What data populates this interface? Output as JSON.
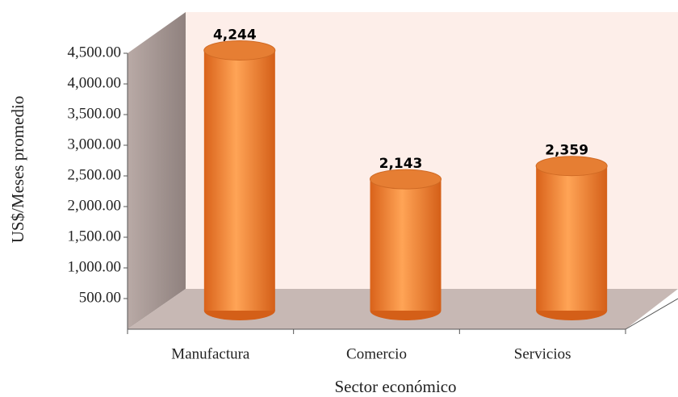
{
  "chart_data": {
    "type": "bar",
    "x_label": "Sector económico",
    "y_label": "US$/Meses promedio",
    "categories": [
      "Manufactura",
      "Comercio",
      "Servicios"
    ],
    "values": [
      4244,
      2143,
      2359
    ],
    "value_labels": [
      "4,244",
      "2,143",
      "2,359"
    ],
    "color": "#f28a3c",
    "ylim": [
      0,
      4500
    ],
    "yticks": [
      {
        "value": 500,
        "label": "500.00"
      },
      {
        "value": 1000,
        "label": "1,000.00"
      },
      {
        "value": 1500,
        "label": "1,500.00"
      },
      {
        "value": 2000,
        "label": "2,000.00"
      },
      {
        "value": 2500,
        "label": "2,500.00"
      },
      {
        "value": 3000,
        "label": "3,000.00"
      },
      {
        "value": 3500,
        "label": "3,500.00"
      },
      {
        "value": 4000,
        "label": "4,000.00"
      },
      {
        "value": 4500,
        "label": "4,500.00"
      }
    ]
  }
}
